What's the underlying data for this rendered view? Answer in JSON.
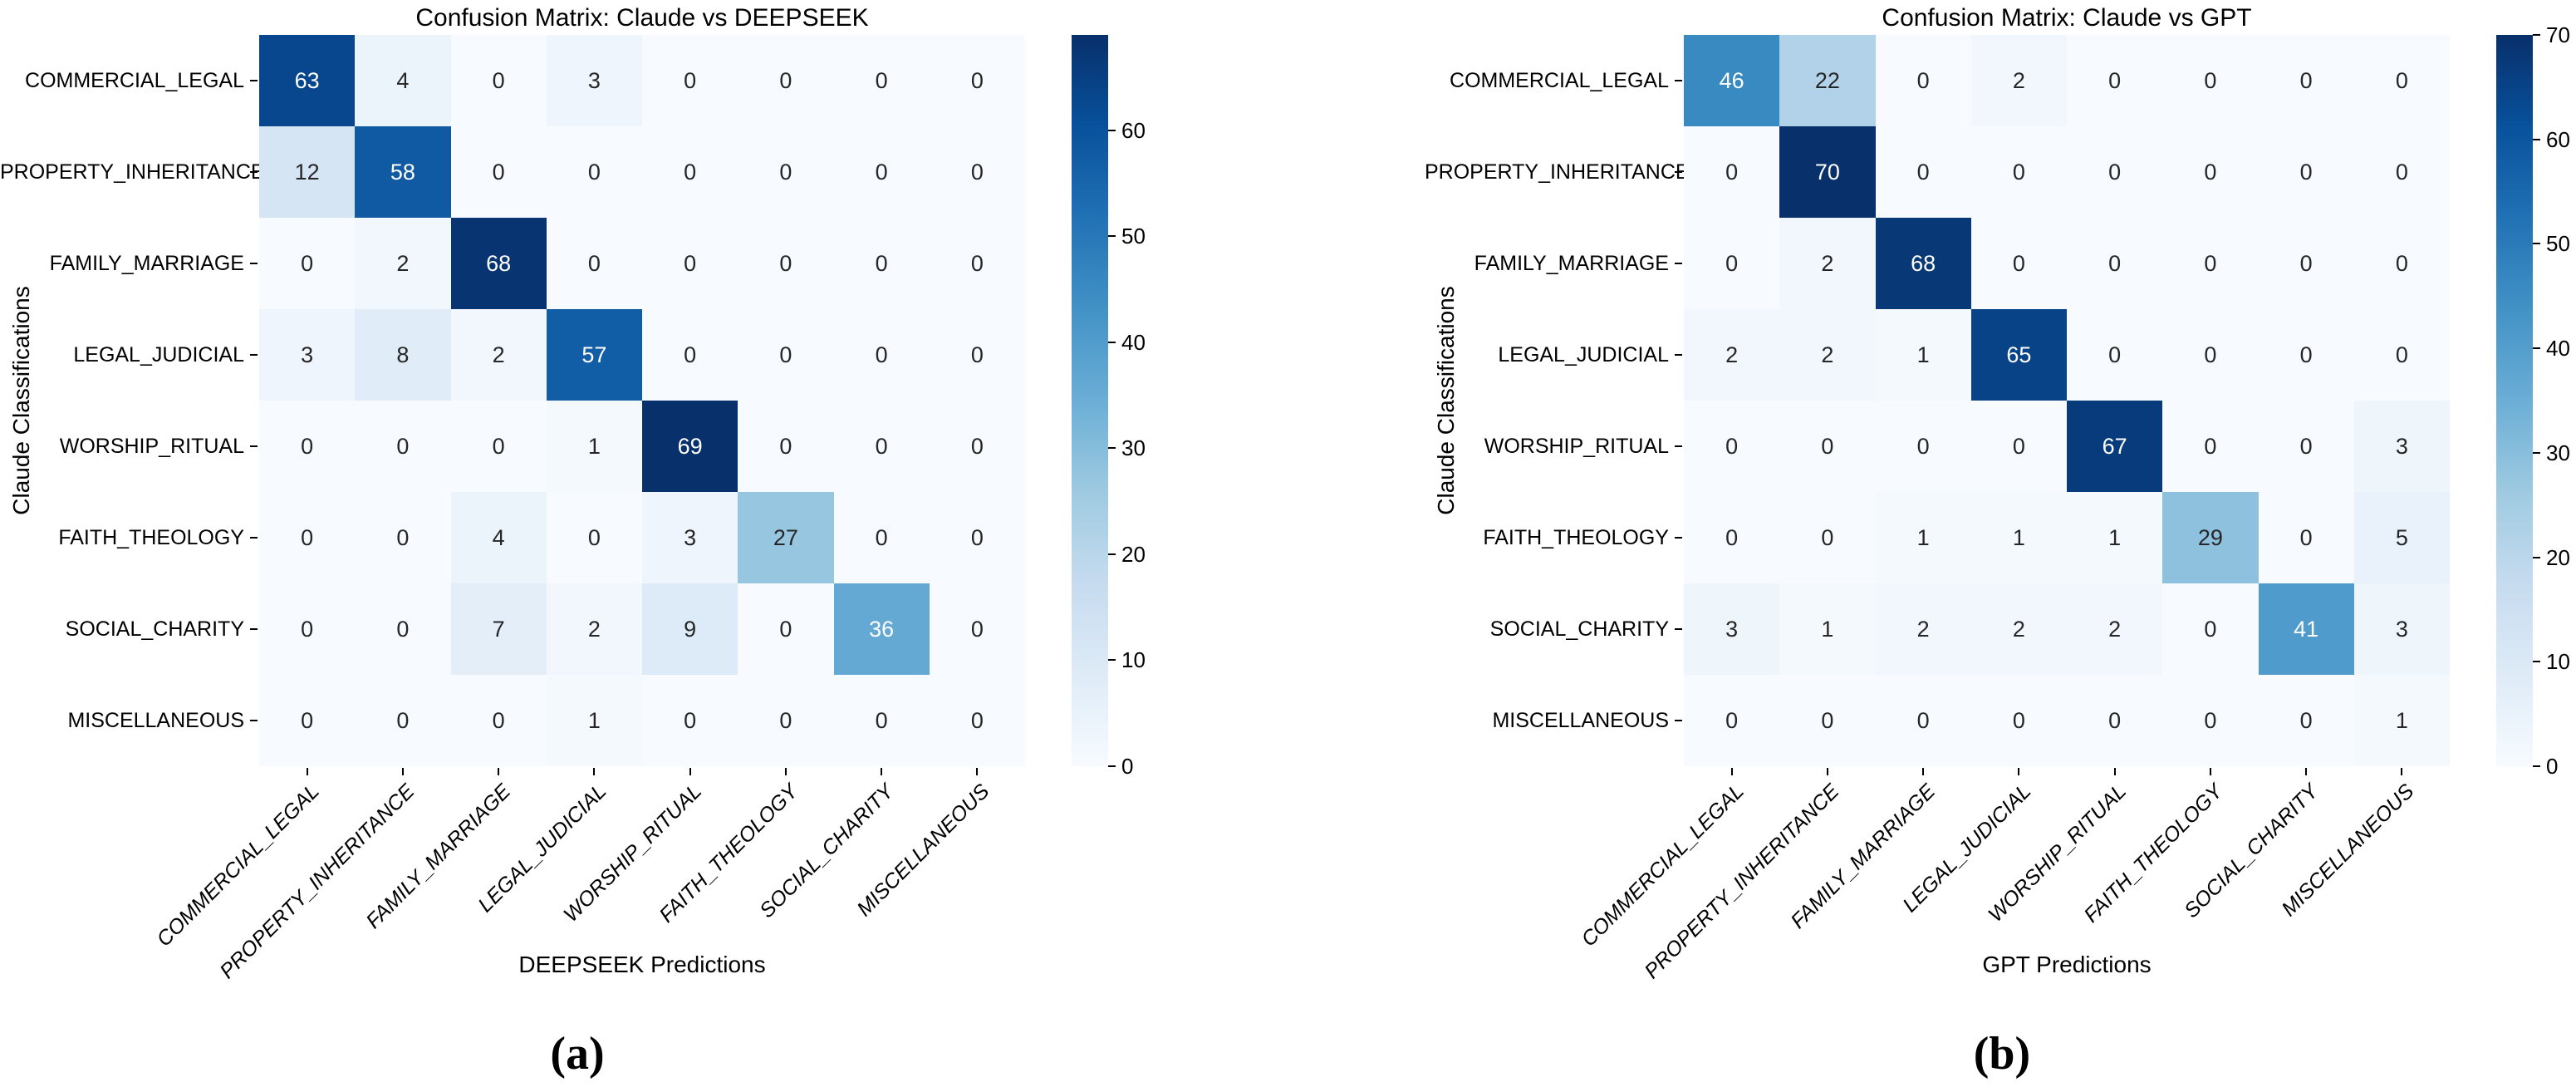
{
  "captions": {
    "a": "(a)",
    "b": "(b)"
  },
  "colors": {
    "colormap": "Blues",
    "anchors": [
      "#f7fbff",
      "#deebf7",
      "#c6dbef",
      "#9ecae1",
      "#6baed6",
      "#4292c6",
      "#2171b5",
      "#08519c",
      "#08306b"
    ],
    "annotation_dark": "#262626",
    "annotation_light": "#ffffff",
    "background": "#ffffff"
  },
  "chart_data": [
    {
      "type": "heatmap",
      "title": "Confusion Matrix: Claude vs DEEPSEEK",
      "xlabel": "DEEPSEEK Predictions",
      "ylabel": "Claude Classifications",
      "colormap": "Blues",
      "vmin": 0,
      "vmax": 69,
      "legend_position": "right-colorbar",
      "colorbar_ticks": [
        0,
        10,
        20,
        30,
        40,
        50,
        60
      ],
      "categories": [
        "COMMERCIAL_LEGAL",
        "PROPERTY_INHERITANCE",
        "FAMILY_MARRIAGE",
        "LEGAL_JUDICIAL",
        "WORSHIP_RITUAL",
        "FAITH_THEOLOGY",
        "SOCIAL_CHARITY",
        "MISCELLANEOUS"
      ],
      "rows": [
        "COMMERCIAL_LEGAL",
        "PROPERTY_INHERITANCE",
        "FAMILY_MARRIAGE",
        "LEGAL_JUDICIAL",
        "WORSHIP_RITUAL",
        "FAITH_THEOLOGY",
        "SOCIAL_CHARITY",
        "MISCELLANEOUS"
      ],
      "columns": [
        "COMMERCIAL_LEGAL",
        "PROPERTY_INHERITANCE",
        "FAMILY_MARRIAGE",
        "LEGAL_JUDICIAL",
        "WORSHIP_RITUAL",
        "FAITH_THEOLOGY",
        "SOCIAL_CHARITY",
        "MISCELLANEOUS"
      ],
      "matrix": [
        [
          63,
          4,
          0,
          3,
          0,
          0,
          0,
          0
        ],
        [
          12,
          58,
          0,
          0,
          0,
          0,
          0,
          0
        ],
        [
          0,
          2,
          68,
          0,
          0,
          0,
          0,
          0
        ],
        [
          3,
          8,
          2,
          57,
          0,
          0,
          0,
          0
        ],
        [
          0,
          0,
          0,
          1,
          69,
          0,
          0,
          0
        ],
        [
          0,
          0,
          4,
          0,
          3,
          27,
          0,
          0
        ],
        [
          0,
          0,
          7,
          2,
          9,
          0,
          36,
          0
        ],
        [
          0,
          0,
          0,
          1,
          0,
          0,
          0,
          0
        ]
      ]
    },
    {
      "type": "heatmap",
      "title": "Confusion Matrix: Claude vs GPT",
      "xlabel": "GPT Predictions",
      "ylabel": "Claude Classifications",
      "colormap": "Blues",
      "vmin": 0,
      "vmax": 70,
      "legend_position": "right-colorbar",
      "colorbar_ticks": [
        0,
        10,
        20,
        30,
        40,
        50,
        60,
        70
      ],
      "categories": [
        "COMMERCIAL_LEGAL",
        "PROPERTY_INHERITANCE",
        "FAMILY_MARRIAGE",
        "LEGAL_JUDICIAL",
        "WORSHIP_RITUAL",
        "FAITH_THEOLOGY",
        "SOCIAL_CHARITY",
        "MISCELLANEOUS"
      ],
      "rows": [
        "COMMERCIAL_LEGAL",
        "PROPERTY_INHERITANCE",
        "FAMILY_MARRIAGE",
        "LEGAL_JUDICIAL",
        "WORSHIP_RITUAL",
        "FAITH_THEOLOGY",
        "SOCIAL_CHARITY",
        "MISCELLANEOUS"
      ],
      "columns": [
        "COMMERCIAL_LEGAL",
        "PROPERTY_INHERITANCE",
        "FAMILY_MARRIAGE",
        "LEGAL_JUDICIAL",
        "WORSHIP_RITUAL",
        "FAITH_THEOLOGY",
        "SOCIAL_CHARITY",
        "MISCELLANEOUS"
      ],
      "matrix": [
        [
          46,
          22,
          0,
          2,
          0,
          0,
          0,
          0
        ],
        [
          0,
          70,
          0,
          0,
          0,
          0,
          0,
          0
        ],
        [
          0,
          2,
          68,
          0,
          0,
          0,
          0,
          0
        ],
        [
          2,
          2,
          1,
          65,
          0,
          0,
          0,
          0
        ],
        [
          0,
          0,
          0,
          0,
          67,
          0,
          0,
          3
        ],
        [
          0,
          0,
          1,
          1,
          1,
          29,
          0,
          5
        ],
        [
          3,
          1,
          2,
          2,
          2,
          0,
          41,
          3
        ],
        [
          0,
          0,
          0,
          0,
          0,
          0,
          0,
          1
        ]
      ]
    }
  ]
}
